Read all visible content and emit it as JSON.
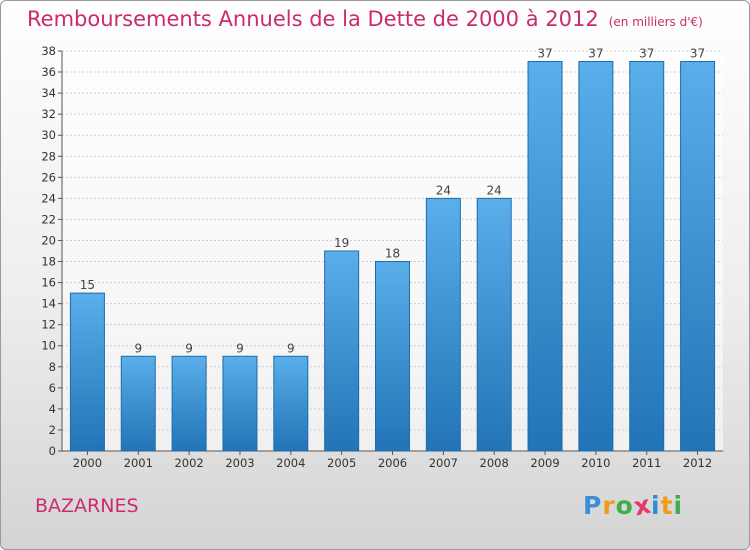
{
  "header": {
    "title": "Remboursements Annuels de la Dette de 2000 à 2012",
    "subtitle": "(en milliers d'€)"
  },
  "footer": {
    "city": "BAZARNES",
    "logo": {
      "letters": [
        "P",
        "r",
        "o",
        "x",
        "i",
        "t",
        "i"
      ],
      "colors": [
        "#3a8fd6",
        "#f29a1f",
        "#3fae49",
        "#e23a6e",
        "#2c8fd6",
        "#f29a1f",
        "#3fae49"
      ]
    }
  },
  "colors": {
    "title": "#cc2a6e",
    "bar_top": "#5aaeea",
    "bar_bottom": "#2274b6",
    "bar_stroke": "#1e6cab",
    "grid": "#cfcfcf"
  },
  "chart_data": {
    "type": "bar",
    "title": "Remboursements Annuels de la Dette de 2000 à 2012",
    "subtitle": "(en milliers d'€)",
    "categories": [
      "2000",
      "2001",
      "2002",
      "2003",
      "2004",
      "2005",
      "2006",
      "2007",
      "2008",
      "2009",
      "2010",
      "2011",
      "2012"
    ],
    "values": [
      15,
      9,
      9,
      9,
      9,
      19,
      18,
      24,
      24,
      37,
      37,
      37,
      37
    ],
    "ylim": [
      0,
      38
    ],
    "yticks": [
      0,
      2,
      4,
      6,
      8,
      10,
      12,
      14,
      16,
      18,
      20,
      22,
      24,
      26,
      28,
      30,
      32,
      34,
      36,
      38
    ],
    "grid": true,
    "data_labels": true
  }
}
